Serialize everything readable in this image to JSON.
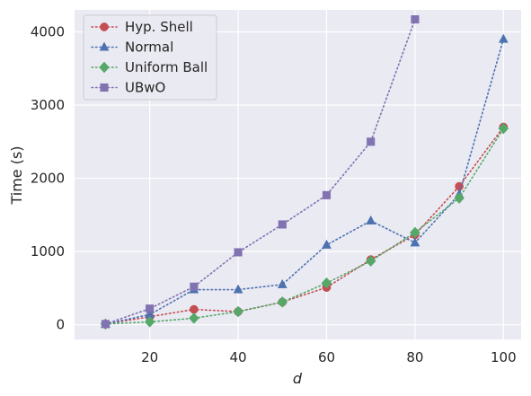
{
  "chart_data": {
    "type": "line",
    "xlabel": "d",
    "ylabel": "Time (s)",
    "xlim": [
      3,
      104
    ],
    "ylim": [
      -200,
      4300
    ],
    "xticks": [
      20,
      40,
      60,
      80,
      100
    ],
    "yticks": [
      0,
      1000,
      2000,
      3000,
      4000
    ],
    "grid": true,
    "legend_position": "upper-left",
    "series": [
      {
        "name": "Hyp. Shell",
        "color": "#c44e52",
        "marker": "circle",
        "x": [
          10,
          20,
          30,
          40,
          50,
          60,
          70,
          80,
          90,
          100
        ],
        "values": [
          10,
          110,
          210,
          180,
          310,
          510,
          890,
          1230,
          1890,
          2700
        ]
      },
      {
        "name": "Normal",
        "color": "#4c72b0",
        "marker": "triangle",
        "x": [
          10,
          20,
          30,
          40,
          50,
          60,
          70,
          80,
          90,
          100
        ],
        "values": [
          10,
          140,
          480,
          480,
          550,
          1090,
          1420,
          1120,
          1780,
          3900
        ]
      },
      {
        "name": "Uniform Ball",
        "color": "#55a868",
        "marker": "diamond",
        "x": [
          10,
          20,
          30,
          40,
          50,
          60,
          70,
          80,
          90,
          100
        ],
        "values": [
          10,
          40,
          90,
          180,
          310,
          570,
          870,
          1260,
          1730,
          2680
        ]
      },
      {
        "name": "UBwO",
        "color": "#8172b2",
        "marker": "square",
        "x": [
          10,
          20,
          30,
          40,
          50,
          60,
          70,
          80
        ],
        "values": [
          10,
          220,
          520,
          990,
          1370,
          1770,
          2500,
          4170
        ]
      }
    ]
  }
}
